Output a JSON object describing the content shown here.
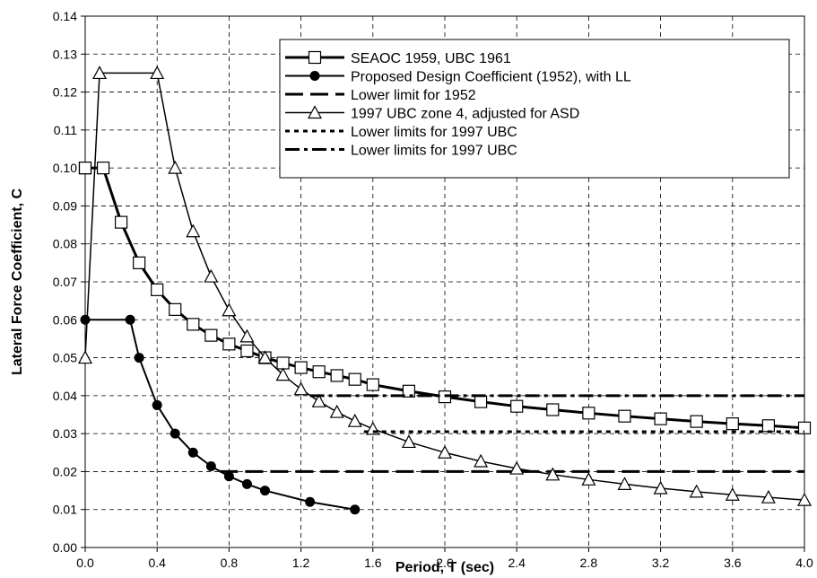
{
  "chart_data": {
    "type": "line",
    "title": "",
    "xlabel": "Period, T (sec)",
    "ylabel": "Lateral Force Coefficient, C",
    "xlim": [
      0,
      4.0
    ],
    "ylim": [
      0,
      0.14
    ],
    "x_ticks": [
      "0.0",
      "0.4",
      "0.8",
      "1.2",
      "1.6",
      "2.0",
      "2.4",
      "2.8",
      "3.2",
      "3.6",
      "4.0"
    ],
    "y_ticks": [
      "0.00",
      "0.01",
      "0.02",
      "0.03",
      "0.04",
      "0.05",
      "0.06",
      "0.07",
      "0.08",
      "0.09",
      "0.10",
      "0.11",
      "0.12",
      "0.13",
      "0.14"
    ],
    "grid": "dashed",
    "legend_position": "top-right",
    "series": [
      {
        "name": "SEAOC 1959, UBC 1961",
        "color": "#000000",
        "marker": "open-square",
        "line": "solid-thick",
        "x": [
          0.0,
          0.0,
          0.1,
          0.2,
          0.3,
          0.4,
          0.5,
          0.6,
          0.7,
          0.8,
          0.9,
          1.0,
          1.1,
          1.2,
          1.3,
          1.4,
          1.5,
          1.6,
          1.8,
          2.0,
          2.2,
          2.4,
          2.6,
          2.8,
          3.0,
          3.2,
          3.4,
          3.6,
          3.8,
          4.0
        ],
        "y": [
          0.1,
          0.1,
          0.1,
          0.0857,
          0.075,
          0.0679,
          0.0627,
          0.0588,
          0.0559,
          0.0536,
          0.0518,
          0.05,
          0.0486,
          0.0474,
          0.0463,
          0.0453,
          0.0443,
          0.0429,
          0.0412,
          0.0397,
          0.0384,
          0.0372,
          0.0363,
          0.0354,
          0.0346,
          0.0339,
          0.0332,
          0.0326,
          0.0321,
          0.0315
        ]
      },
      {
        "name": "Proposed Design Coefficient (1952), with LL",
        "color": "#000000",
        "marker": "filled-circle",
        "line": "solid",
        "x": [
          0.0,
          0.25,
          0.3,
          0.4,
          0.5,
          0.6,
          0.7,
          0.8,
          0.9,
          1.0,
          1.25,
          1.5
        ],
        "y": [
          0.06,
          0.06,
          0.05,
          0.0375,
          0.03,
          0.025,
          0.0214,
          0.01875,
          0.0167,
          0.015,
          0.012,
          0.01
        ]
      },
      {
        "name": "Lower limit for 1952",
        "color": "#000000",
        "marker": "none",
        "line": "long-dash",
        "x": [
          0.75,
          4.0
        ],
        "y": [
          0.02,
          0.02
        ]
      },
      {
        "name": "1997 UBC zone 4, adjusted for ASD",
        "color": "#000000",
        "marker": "open-triangle",
        "line": "solid-thin",
        "x": [
          0.0,
          0.08,
          0.4,
          0.5,
          0.6,
          0.7,
          0.8,
          0.9,
          1.0,
          1.1,
          1.2,
          1.3,
          1.4,
          1.5,
          1.6,
          1.8,
          2.0,
          2.2,
          2.4,
          2.6,
          2.8,
          3.0,
          3.2,
          3.4,
          3.6,
          3.8,
          4.0
        ],
        "y": [
          0.05,
          0.125,
          0.125,
          0.1,
          0.0833,
          0.0714,
          0.0625,
          0.0556,
          0.05,
          0.0455,
          0.0417,
          0.0385,
          0.0357,
          0.0333,
          0.03125,
          0.0278,
          0.025,
          0.0227,
          0.0208,
          0.0192,
          0.0179,
          0.0167,
          0.0156,
          0.0147,
          0.0139,
          0.0132,
          0.0125
        ]
      },
      {
        "name": "Lower limits for 1997 UBC",
        "color": "#000000",
        "marker": "none",
        "line": "dotted",
        "x": [
          1.55,
          4.0
        ],
        "y": [
          0.0305,
          0.0305
        ]
      },
      {
        "name": "Lower limits for 1997 UBC",
        "color": "#000000",
        "marker": "none",
        "line": "dash-dot",
        "x": [
          1.25,
          4.0
        ],
        "y": [
          0.04,
          0.04
        ]
      }
    ]
  }
}
